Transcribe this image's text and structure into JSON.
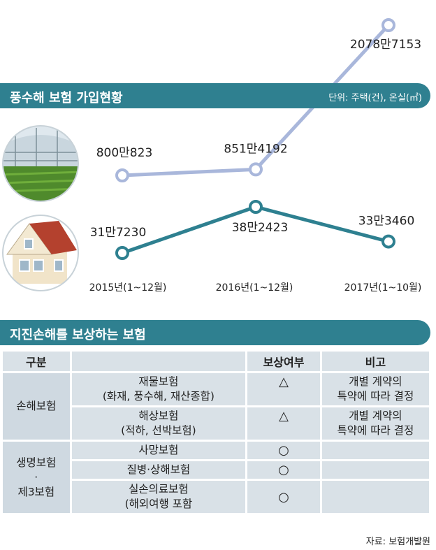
{
  "header": {
    "title": "풍수해 보험 가입현황",
    "unit": "단위: 주택(건), 온실(㎡)"
  },
  "chart_data": {
    "type": "line",
    "categories": [
      "2015년(1~12월)",
      "2016년(1~12월)",
      "2017년(1~10월)"
    ],
    "series": [
      {
        "name": "온실",
        "values": [
          8000823,
          8514192,
          20787153
        ],
        "labels": [
          "800만823",
          "851만4192",
          "2078만7153"
        ],
        "color": "#a9b7db"
      },
      {
        "name": "주택",
        "values": [
          317230,
          382423,
          333460
        ],
        "labels": [
          "31만7230",
          "38만2423",
          "33만3460"
        ],
        "color": "#2e8090"
      }
    ]
  },
  "section2": {
    "title": "지진손해를 보상하는 보험"
  },
  "table": {
    "headers": [
      "구분",
      "",
      "보상여부",
      "비고"
    ],
    "groups": [
      {
        "category": "손해보험",
        "rows": [
          {
            "name": "재물보험",
            "sub": "(화재, 풍수해, 재산종합)",
            "mark": "△",
            "note1": "개별 계약의",
            "note2": "특약에 따라 결정"
          },
          {
            "name": "해상보험",
            "sub": "(적하, 선박보험)",
            "mark": "△",
            "note1": "개별 계약의",
            "note2": "특약에 따라 결정"
          }
        ]
      },
      {
        "category1": "생명보험",
        "category2": "·",
        "category3": "제3보험",
        "rows": [
          {
            "name": "사망보험",
            "mark": "○"
          },
          {
            "name": "질병·상해보험",
            "mark": "○"
          },
          {
            "name": "실손의료보험",
            "sub": "(해외여행 포함",
            "mark": "○"
          }
        ]
      }
    ]
  },
  "source": "자료: 보험개발원"
}
